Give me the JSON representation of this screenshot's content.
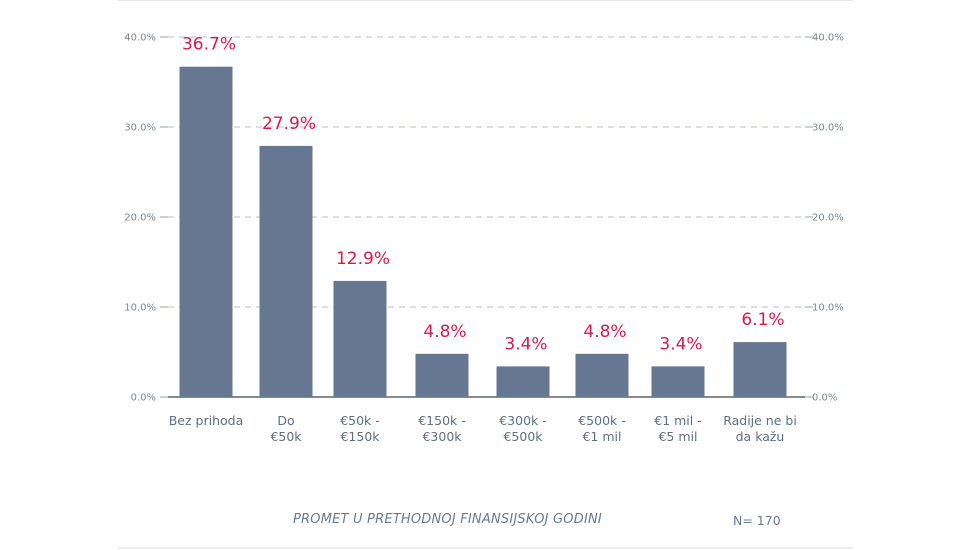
{
  "chart_data": {
    "type": "bar",
    "categories": [
      [
        "Bez prihoda"
      ],
      [
        "Do",
        "€50k"
      ],
      [
        "€50k -",
        "€150k"
      ],
      [
        "€150k -",
        "€300k"
      ],
      [
        "€300k -",
        "€500k"
      ],
      [
        "€500k -",
        "€1 mil"
      ],
      [
        "€1 mil -",
        "€5 mil"
      ],
      [
        "Radije ne bi",
        "da kažu"
      ]
    ],
    "values": [
      36.7,
      27.9,
      12.9,
      4.8,
      3.4,
      4.8,
      3.4,
      6.1
    ],
    "data_labels": [
      "36.7%",
      "27.9%",
      "12.9%",
      "4.8%",
      "3.4%",
      "4.8%",
      "3.4%",
      "6.1%"
    ],
    "ylim": [
      0,
      40
    ],
    "yticks": [
      0,
      10,
      20,
      30,
      40
    ],
    "ytick_labels": [
      "0.0%",
      "10.0%",
      "20.0%",
      "30.0%",
      "40.0%"
    ],
    "secondary_axis": true,
    "grid": "dashed horizontal",
    "bar_color": "#667792",
    "label_color": "#e0174a",
    "axis_color": "#7b8794"
  },
  "footer": {
    "title": "PROMET U PRETHODNOJ FINANSIJSKOJ GODINI",
    "n_label": "N= 170"
  }
}
